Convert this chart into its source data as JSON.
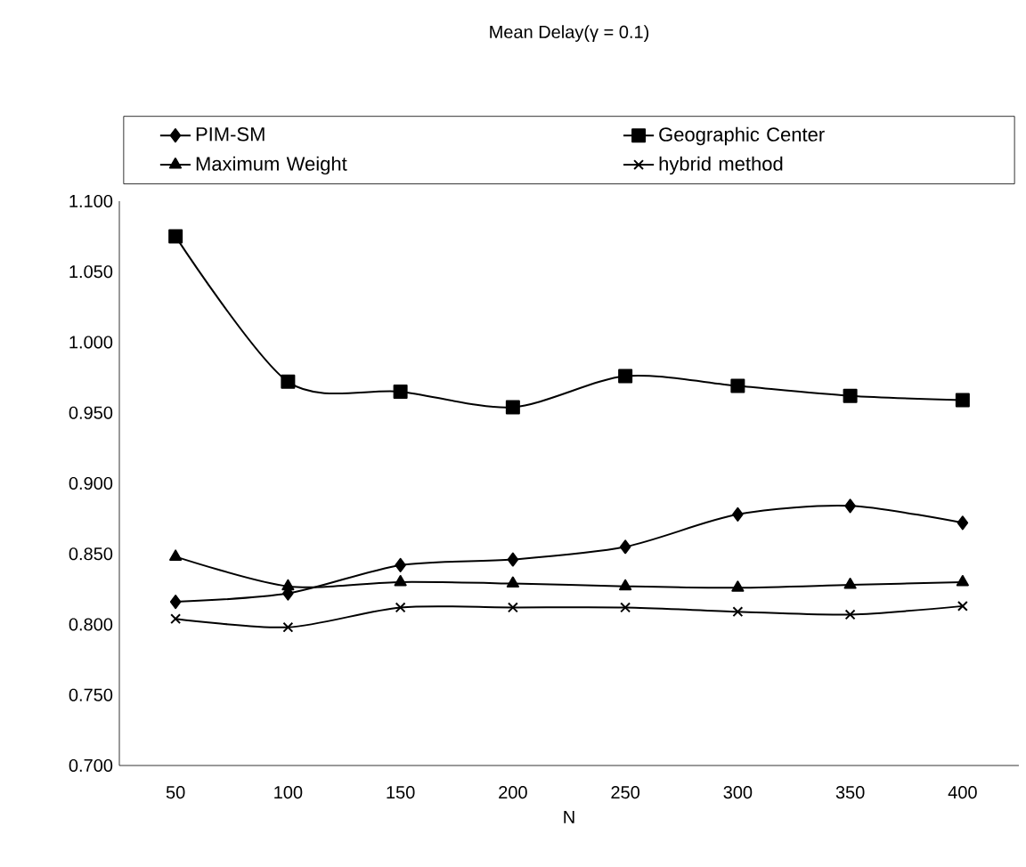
{
  "chart_data": {
    "type": "line",
    "title": "Mean Delay(γ = 0.1)",
    "xlabel": "N",
    "categories": [
      "50",
      "100",
      "150",
      "200",
      "250",
      "300",
      "350",
      "400"
    ],
    "series": [
      {
        "name": "PIM-SM",
        "color": "#000000",
        "marker": "diamond",
        "values": [
          0.816,
          0.822,
          0.842,
          0.846,
          0.855,
          0.878,
          0.884,
          0.872
        ]
      },
      {
        "name": "Geographic Center",
        "color": "#000000",
        "marker": "square",
        "values": [
          1.075,
          0.972,
          0.965,
          0.954,
          0.976,
          0.969,
          0.962,
          0.959
        ]
      },
      {
        "name": "Maximum Weight",
        "color": "#000000",
        "marker": "triangle",
        "values": [
          0.848,
          0.827,
          0.83,
          0.829,
          0.827,
          0.826,
          0.828,
          0.83
        ]
      },
      {
        "name": "hybrid method",
        "color": "#000000",
        "marker": "cross",
        "values": [
          0.804,
          0.798,
          0.812,
          0.812,
          0.812,
          0.809,
          0.807,
          0.813
        ]
      }
    ],
    "ylim": [
      0.7,
      1.1
    ],
    "yticks": [
      {
        "value": 0.7,
        "label": "0.700"
      },
      {
        "value": 0.75,
        "label": "0.750"
      },
      {
        "value": 0.8,
        "label": "0.800"
      },
      {
        "value": 0.85,
        "label": "0.850"
      },
      {
        "value": 0.9,
        "label": "0.900"
      },
      {
        "value": 0.95,
        "label": "0.950"
      },
      {
        "value": 1.0,
        "label": "1.000"
      },
      {
        "value": 1.05,
        "label": "1.050"
      },
      {
        "value": 1.1,
        "label": "1.100"
      }
    ],
    "grid": false,
    "legend": "top",
    "line_style": "solid"
  }
}
